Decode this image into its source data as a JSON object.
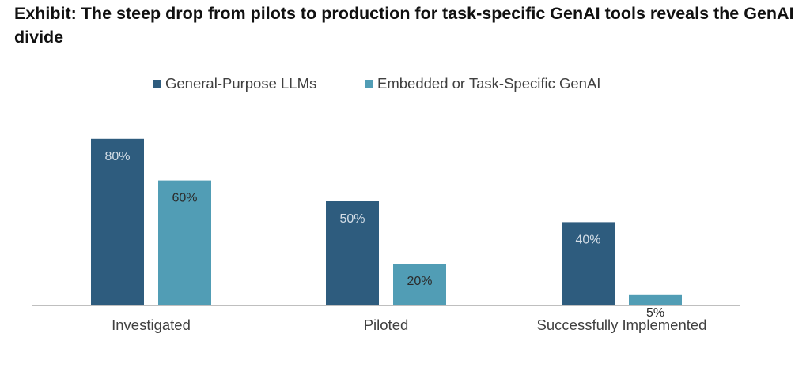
{
  "chart_data": {
    "type": "bar",
    "title": "Exhibit: The steep drop from pilots to production for task-specific GenAI tools reveals the GenAI divide",
    "categories": [
      "Investigated",
      "Piloted",
      "Successfully Implemented"
    ],
    "series": [
      {
        "name": "General-Purpose LLMs",
        "values": [
          80,
          50,
          40
        ],
        "labels": [
          "80%",
          "50%",
          "40%"
        ],
        "color": "#2e5c7e",
        "label_color": "#d3dde6"
      },
      {
        "name": "Embedded or Task-Specific GenAI",
        "values": [
          60,
          20,
          5
        ],
        "labels": [
          "60%",
          "20%",
          "5%"
        ],
        "color": "#519db5",
        "label_color": "#2b2b2b"
      }
    ],
    "ylim": [
      0,
      100
    ],
    "grid": false,
    "legend_position": "top-center",
    "axis_color": "#bfbfbf"
  }
}
